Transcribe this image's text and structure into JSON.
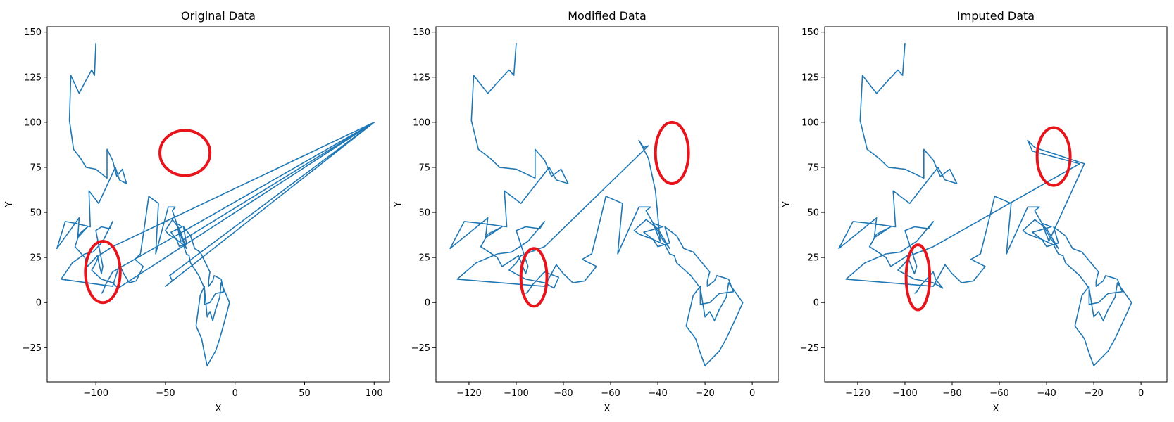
{
  "figure": {
    "line_color": "#1f77b4",
    "annotation_color": "#e8141c"
  },
  "chart_data": [
    {
      "type": "line",
      "title": "Original Data",
      "xlabel": "X",
      "ylabel": "Y",
      "xlim": [
        -135,
        111
      ],
      "ylim": [
        -44,
        153
      ],
      "xticks": [
        -100,
        -50,
        0,
        50,
        100
      ],
      "yticks": [
        -25,
        0,
        25,
        50,
        75,
        100,
        125,
        150
      ],
      "grid": false,
      "series": [
        {
          "x": [
            -100,
            -101,
            -103,
            -108,
            -112,
            -118,
            -119,
            -116,
            -111,
            -107,
            -100,
            -92,
            -92,
            -88,
            -85,
            -81,
            -78,
            -83,
            -86,
            -98,
            -105,
            -104,
            -115,
            -122,
            -128,
            -112,
            -113,
            -106,
            -112,
            -115,
            -108,
            -106,
            -99,
            -96,
            -95,
            -100,
            -96,
            -90,
            -88,
            -95,
            -102,
            -108,
            -117,
            -125,
            -88,
            -83,
            -80,
            -76,
            -71,
            -66,
            -72,
            -68,
            -64,
            -62,
            -55,
            -57,
            -48,
            -43,
            -45,
            -38,
            -35,
            -40,
            -45,
            -50,
            -48,
            -42,
            -40,
            -35,
            -37,
            -32,
            -29,
            -25,
            -18,
            -19,
            -19,
            -16,
            -15,
            -10,
            -8,
            -14,
            -18,
            -22,
            -22,
            -25,
            -28,
            -24,
            -22,
            -20,
            -14,
            -11,
            -6,
            -4,
            -10,
            -11,
            -14,
            -16,
            -18,
            -20,
            -22,
            -26,
            -32,
            -33,
            -35,
            -37,
            -42,
            -46,
            -38,
            -42,
            -39,
            100,
            -50,
            -45,
            -47,
            100,
            -88,
            -98,
            -100,
            -103,
            -96,
            -92,
            -88,
            -84,
            100,
            -88,
            -93,
            -95,
            -96
          ],
          "y": [
            144,
            126,
            129,
            122,
            116,
            126,
            101,
            85,
            80,
            75,
            74,
            69,
            85,
            79,
            70,
            74,
            66,
            68,
            75,
            55,
            62,
            42,
            44,
            45,
            30,
            47,
            36,
            42,
            38,
            31,
            25,
            20,
            26,
            16,
            20,
            40,
            42,
            41,
            45,
            34,
            28,
            27,
            22,
            13,
            9,
            21,
            16,
            11,
            12,
            20,
            24,
            27,
            48,
            59,
            55,
            27,
            53,
            53,
            51,
            35,
            30,
            41,
            46,
            40,
            38,
            35,
            31,
            33,
            42,
            37,
            30,
            28,
            17,
            12,
            9,
            12,
            15,
            13,
            6,
            5,
            0,
            -1,
            9,
            4,
            -13,
            -20,
            -28,
            -35,
            -27,
            -20,
            -6,
            0,
            11,
            3,
            -4,
            -10,
            -5,
            -8,
            8,
            15,
            22,
            26,
            27,
            32,
            35,
            39,
            42,
            44,
            34,
            100,
            9,
            12,
            15,
            100,
            31,
            26,
            22,
            18,
            13,
            12,
            11,
            8,
            100,
            17,
            10,
            6,
            5
          ]
        }
      ],
      "annotations": [
        {
          "shape": "ellipse",
          "cx": -36,
          "cy": 83,
          "rx": 18,
          "ry": 12.5
        },
        {
          "shape": "ellipse",
          "cx": -95,
          "cy": 17,
          "rx": 12.5,
          "ry": 17
        }
      ]
    },
    {
      "type": "line",
      "title": "Modified Data",
      "xlabel": "X",
      "ylabel": "Y",
      "xlim": [
        -134,
        11
      ],
      "ylim": [
        -44,
        153
      ],
      "xticks": [
        -120,
        -100,
        -80,
        -60,
        -40,
        -20,
        0
      ],
      "yticks": [
        -25,
        0,
        25,
        50,
        75,
        100,
        125,
        150
      ],
      "grid": false,
      "series": [
        {
          "x": [
            -100,
            -101,
            -103,
            -108,
            -112,
            -118,
            -119,
            -116,
            -111,
            -107,
            -100,
            -92,
            -92,
            -88,
            -85,
            -81,
            -78,
            -83,
            -86,
            -98,
            -105,
            -104,
            -115,
            -122,
            -128,
            -112,
            -113,
            -106,
            -112,
            -115,
            -108,
            -106,
            -99,
            -96,
            -95,
            -100,
            -96,
            -90,
            -88,
            -95,
            -102,
            -108,
            -117,
            -125,
            -88,
            -83,
            -80,
            -76,
            -71,
            -66,
            -72,
            -68,
            -64,
            -62,
            -55,
            -57,
            -48,
            -43,
            -45,
            -38,
            -35,
            -40,
            -45,
            -50,
            -48,
            -42,
            -40,
            -35,
            -37,
            -32,
            -29,
            -25,
            -18,
            -19,
            -19,
            -16,
            -15,
            -10,
            -8,
            -14,
            -18,
            -22,
            -22,
            -25,
            -28,
            -24,
            -22,
            -20,
            -14,
            -11,
            -6,
            -4,
            -10,
            -11,
            -14,
            -16,
            -18,
            -20,
            -22,
            -26,
            -32,
            -33,
            -35,
            -37,
            -42,
            -46,
            -38,
            -42,
            -39,
            -41,
            -44,
            -48,
            -46,
            -44,
            -88,
            -98,
            -100,
            -103,
            -96,
            -92,
            -88,
            -84,
            -82,
            -88,
            -93,
            -95,
            -96
          ],
          "y": [
            144,
            126,
            129,
            122,
            116,
            126,
            101,
            85,
            80,
            75,
            74,
            69,
            85,
            79,
            70,
            74,
            66,
            68,
            75,
            55,
            62,
            42,
            44,
            45,
            30,
            47,
            36,
            42,
            38,
            31,
            25,
            20,
            26,
            16,
            20,
            40,
            42,
            41,
            45,
            34,
            28,
            27,
            22,
            13,
            9,
            21,
            16,
            11,
            12,
            20,
            24,
            27,
            48,
            59,
            55,
            27,
            53,
            53,
            51,
            35,
            30,
            41,
            46,
            40,
            38,
            35,
            31,
            33,
            42,
            37,
            30,
            28,
            17,
            12,
            9,
            12,
            15,
            13,
            6,
            5,
            0,
            -1,
            9,
            4,
            -13,
            -20,
            -28,
            -35,
            -27,
            -20,
            -6,
            0,
            11,
            3,
            -4,
            -10,
            -5,
            -8,
            8,
            15,
            22,
            26,
            27,
            32,
            35,
            39,
            42,
            44,
            34,
            62,
            80,
            90,
            86,
            87,
            31,
            26,
            22,
            18,
            13,
            12,
            11,
            8,
            14,
            17,
            10,
            6,
            5
          ]
        }
      ],
      "annotations": [
        {
          "shape": "ellipse",
          "cx": -34,
          "cy": 83,
          "rx": 7,
          "ry": 17
        },
        {
          "shape": "ellipse",
          "cx": -92.5,
          "cy": 14,
          "rx": 5.5,
          "ry": 16
        }
      ]
    },
    {
      "type": "line",
      "title": "Imputed Data",
      "xlabel": "X",
      "ylabel": "Y",
      "xlim": [
        -134,
        11
      ],
      "ylim": [
        -44,
        153
      ],
      "xticks": [
        -120,
        -100,
        -80,
        -60,
        -40,
        -20,
        0
      ],
      "yticks": [
        -25,
        0,
        25,
        50,
        75,
        100,
        125,
        150
      ],
      "grid": false,
      "series": [
        {
          "x": [
            -100,
            -101,
            -103,
            -108,
            -112,
            -118,
            -119,
            -116,
            -111,
            -107,
            -100,
            -92,
            -92,
            -88,
            -85,
            -81,
            -78,
            -83,
            -86,
            -98,
            -105,
            -104,
            -115,
            -122,
            -128,
            -112,
            -113,
            -106,
            -112,
            -115,
            -108,
            -106,
            -99,
            -96,
            -95,
            -100,
            -96,
            -90,
            -88,
            -95,
            -102,
            -108,
            -117,
            -125,
            -88,
            -83,
            -80,
            -76,
            -71,
            -66,
            -72,
            -68,
            -64,
            -62,
            -55,
            -57,
            -48,
            -43,
            -45,
            -38,
            -35,
            -40,
            -45,
            -50,
            -48,
            -42,
            -40,
            -35,
            -37,
            -32,
            -29,
            -25,
            -18,
            -19,
            -19,
            -16,
            -15,
            -10,
            -8,
            -14,
            -18,
            -22,
            -22,
            -25,
            -28,
            -24,
            -22,
            -20,
            -14,
            -11,
            -6,
            -4,
            -10,
            -11,
            -14,
            -16,
            -18,
            -20,
            -22,
            -26,
            -32,
            -33,
            -35,
            -37,
            -42,
            -46,
            -38,
            -42,
            -39,
            -24,
            -45,
            -48,
            -46,
            -26,
            -88,
            -98,
            -100,
            -103,
            -96,
            -92,
            -88,
            -84,
            -87,
            -88,
            -93,
            -95,
            -96
          ],
          "y": [
            144,
            126,
            129,
            122,
            116,
            126,
            101,
            85,
            80,
            75,
            74,
            69,
            85,
            79,
            70,
            74,
            66,
            68,
            75,
            55,
            62,
            42,
            44,
            45,
            30,
            47,
            36,
            42,
            38,
            31,
            25,
            20,
            26,
            16,
            20,
            40,
            42,
            41,
            45,
            34,
            28,
            27,
            22,
            13,
            9,
            21,
            16,
            11,
            12,
            20,
            24,
            27,
            48,
            59,
            55,
            27,
            53,
            53,
            51,
            35,
            30,
            41,
            46,
            40,
            38,
            35,
            31,
            33,
            42,
            37,
            30,
            28,
            17,
            12,
            9,
            12,
            15,
            13,
            6,
            5,
            0,
            -1,
            9,
            4,
            -13,
            -20,
            -28,
            -35,
            -27,
            -20,
            -6,
            0,
            11,
            3,
            -4,
            -10,
            -5,
            -8,
            8,
            15,
            22,
            26,
            27,
            32,
            35,
            39,
            42,
            44,
            34,
            77,
            86,
            90,
            84,
            77,
            31,
            26,
            22,
            18,
            13,
            12,
            11,
            8,
            13,
            17,
            10,
            6,
            5
          ]
        }
      ],
      "annotations": [
        {
          "shape": "ellipse",
          "cx": -37,
          "cy": 81,
          "rx": 7,
          "ry": 16
        },
        {
          "shape": "ellipse",
          "cx": -94.5,
          "cy": 14,
          "rx": 5,
          "ry": 18
        }
      ]
    }
  ]
}
